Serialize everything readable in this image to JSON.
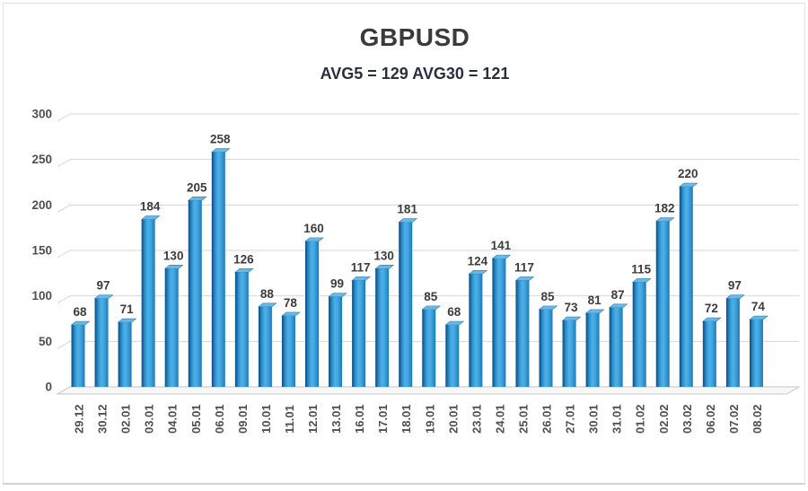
{
  "chart_data": {
    "type": "bar",
    "title": "GBPUSD",
    "subtitle": "AVG5 = 129 AVG30 = 121",
    "avg5": 129,
    "avg30": 121,
    "categories": [
      "29.12",
      "30.12",
      "02.01",
      "03.01",
      "04.01",
      "05.01",
      "06.01",
      "09.01",
      "10.01",
      "11.01",
      "12.01",
      "13.01",
      "16.01",
      "17.01",
      "18.01",
      "19.01",
      "20.01",
      "23.01",
      "24.01",
      "25.01",
      "26.01",
      "27.01",
      "30.01",
      "31.01",
      "01.02",
      "02.02",
      "03.02",
      "06.02",
      "07.02",
      "08.02"
    ],
    "values": [
      68,
      97,
      71,
      184,
      130,
      205,
      258,
      126,
      88,
      78,
      160,
      99,
      117,
      130,
      181,
      85,
      68,
      124,
      141,
      117,
      85,
      73,
      81,
      87,
      115,
      182,
      220,
      72,
      97,
      74
    ],
    "y_ticks": [
      0,
      50,
      100,
      150,
      200,
      250,
      300
    ],
    "ylim": [
      0,
      300
    ],
    "xlabel": "",
    "ylabel": "",
    "grid": "horizontal-3d",
    "legend": "none",
    "style_3d": true,
    "colors": {
      "bar_dark_edge": "#0d4c7d",
      "bar_mid": "#2e90ca",
      "bar_light": "#4db0e8",
      "bar_right": "#1d7ab6",
      "bar_top_face": "#6ab8e6",
      "bar_top_stroke": "#2f7cb0",
      "gridline": "#d6d6d6",
      "floor_fill": "#f7f7f7",
      "floor_stroke": "#c6c6c6",
      "value_label": "#3c3c3c",
      "axis_label": "#4f4f4f",
      "title": "#3a3a3a",
      "subtitle": "#28303f"
    }
  }
}
